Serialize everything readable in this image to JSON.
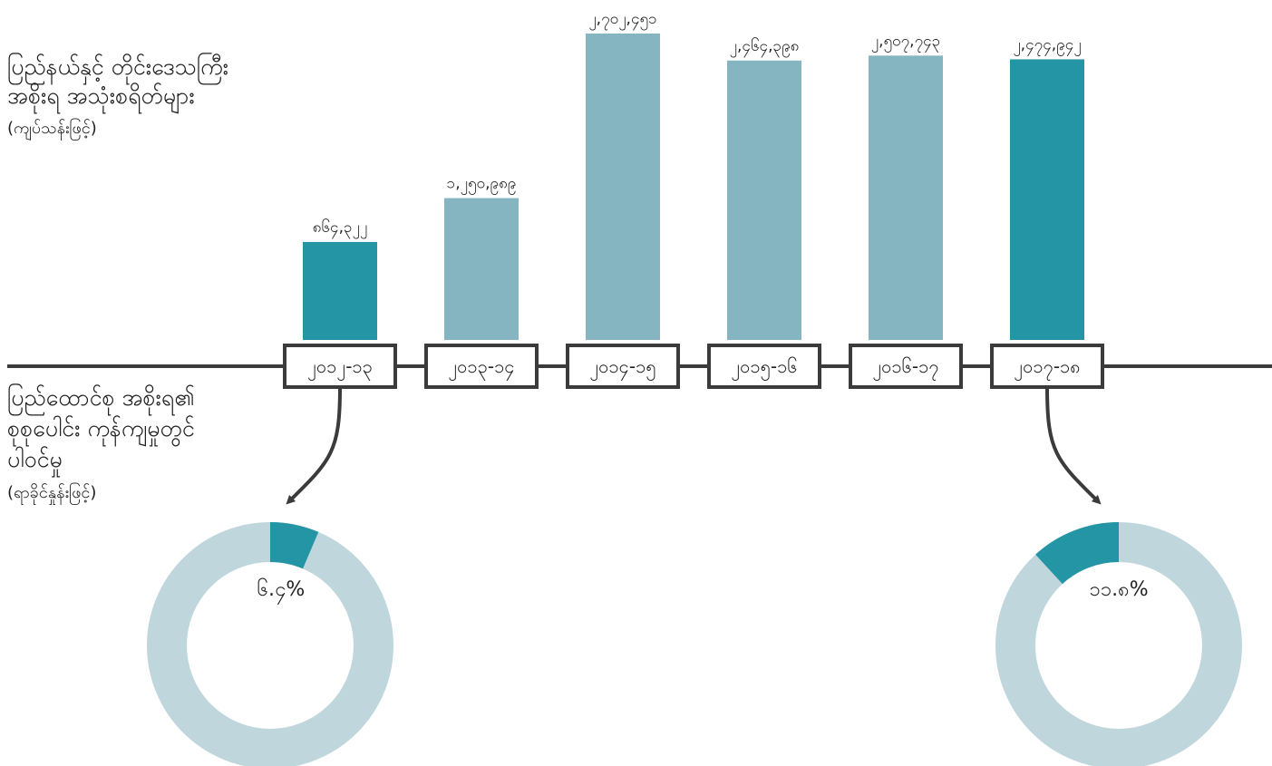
{
  "colors": {
    "highlight": "#2395A4",
    "normal": "#85B5C0",
    "donut_track": "#BED6DC",
    "axis": "#3b3b3b",
    "arrow": "#3b3b3b"
  },
  "top_heading": {
    "lines": [
      "ပြည်နယ်နှင့် တိုင်းဒေသကြီး",
      "အစိုးရ အသုံးစရိတ်များ"
    ],
    "unit": "(ကျပ်သန်းဖြင့်)"
  },
  "bottom_heading": {
    "lines": [
      "ပြည်ထောင်စု အစိုးရ၏",
      "စုစုပေါင်း ကုန်ကျမှုတွင်",
      "ပါဝင်မှု"
    ],
    "unit": "(ရာခိုင်နှုန်းဖြင့်)"
  },
  "chart_data": [
    {
      "type": "bar",
      "categories": [
        "၂၀၁၂-၁၃",
        "၂၀၁၃-၁၄",
        "၂၀၁၄-၁၅",
        "၂၀၁၅-၁၆",
        "၂၀၁၆-၁၇",
        "၂၀၁၇-၁၈"
      ],
      "values": [
        864322,
        1250989,
        2702451,
        2464398,
        2507743,
        2474942
      ],
      "value_labels": [
        "၈၆၄,၃၂၂",
        "၁,၂၅၀,၉၈၉",
        "၂,၇၀၂,၄၅၁",
        "၂,၄၆၄,၃၉၈",
        "၂,၅၀၇,၇၄၃",
        "၂,၄၇၄,၉၄၂"
      ],
      "highlighted": [
        true,
        false,
        false,
        false,
        false,
        true
      ],
      "ylim": [
        0,
        2800000
      ],
      "title": "ပြည်နယ်နှင့် တိုင်းဒေသကြီး အစိုးရ အသုံးစရိတ်များ (ကျပ်သန်းဖြင့်)",
      "grid": false
    },
    {
      "type": "pie",
      "variant": "donut",
      "category": "၂၀၁၂-၁၃",
      "values": [
        6.4,
        93.6
      ],
      "label": "၆.၄%"
    },
    {
      "type": "pie",
      "variant": "donut",
      "category": "၂၀၁၇-၁၈",
      "values": [
        11.8,
        88.2
      ],
      "label": "၁၁.၈%"
    }
  ]
}
